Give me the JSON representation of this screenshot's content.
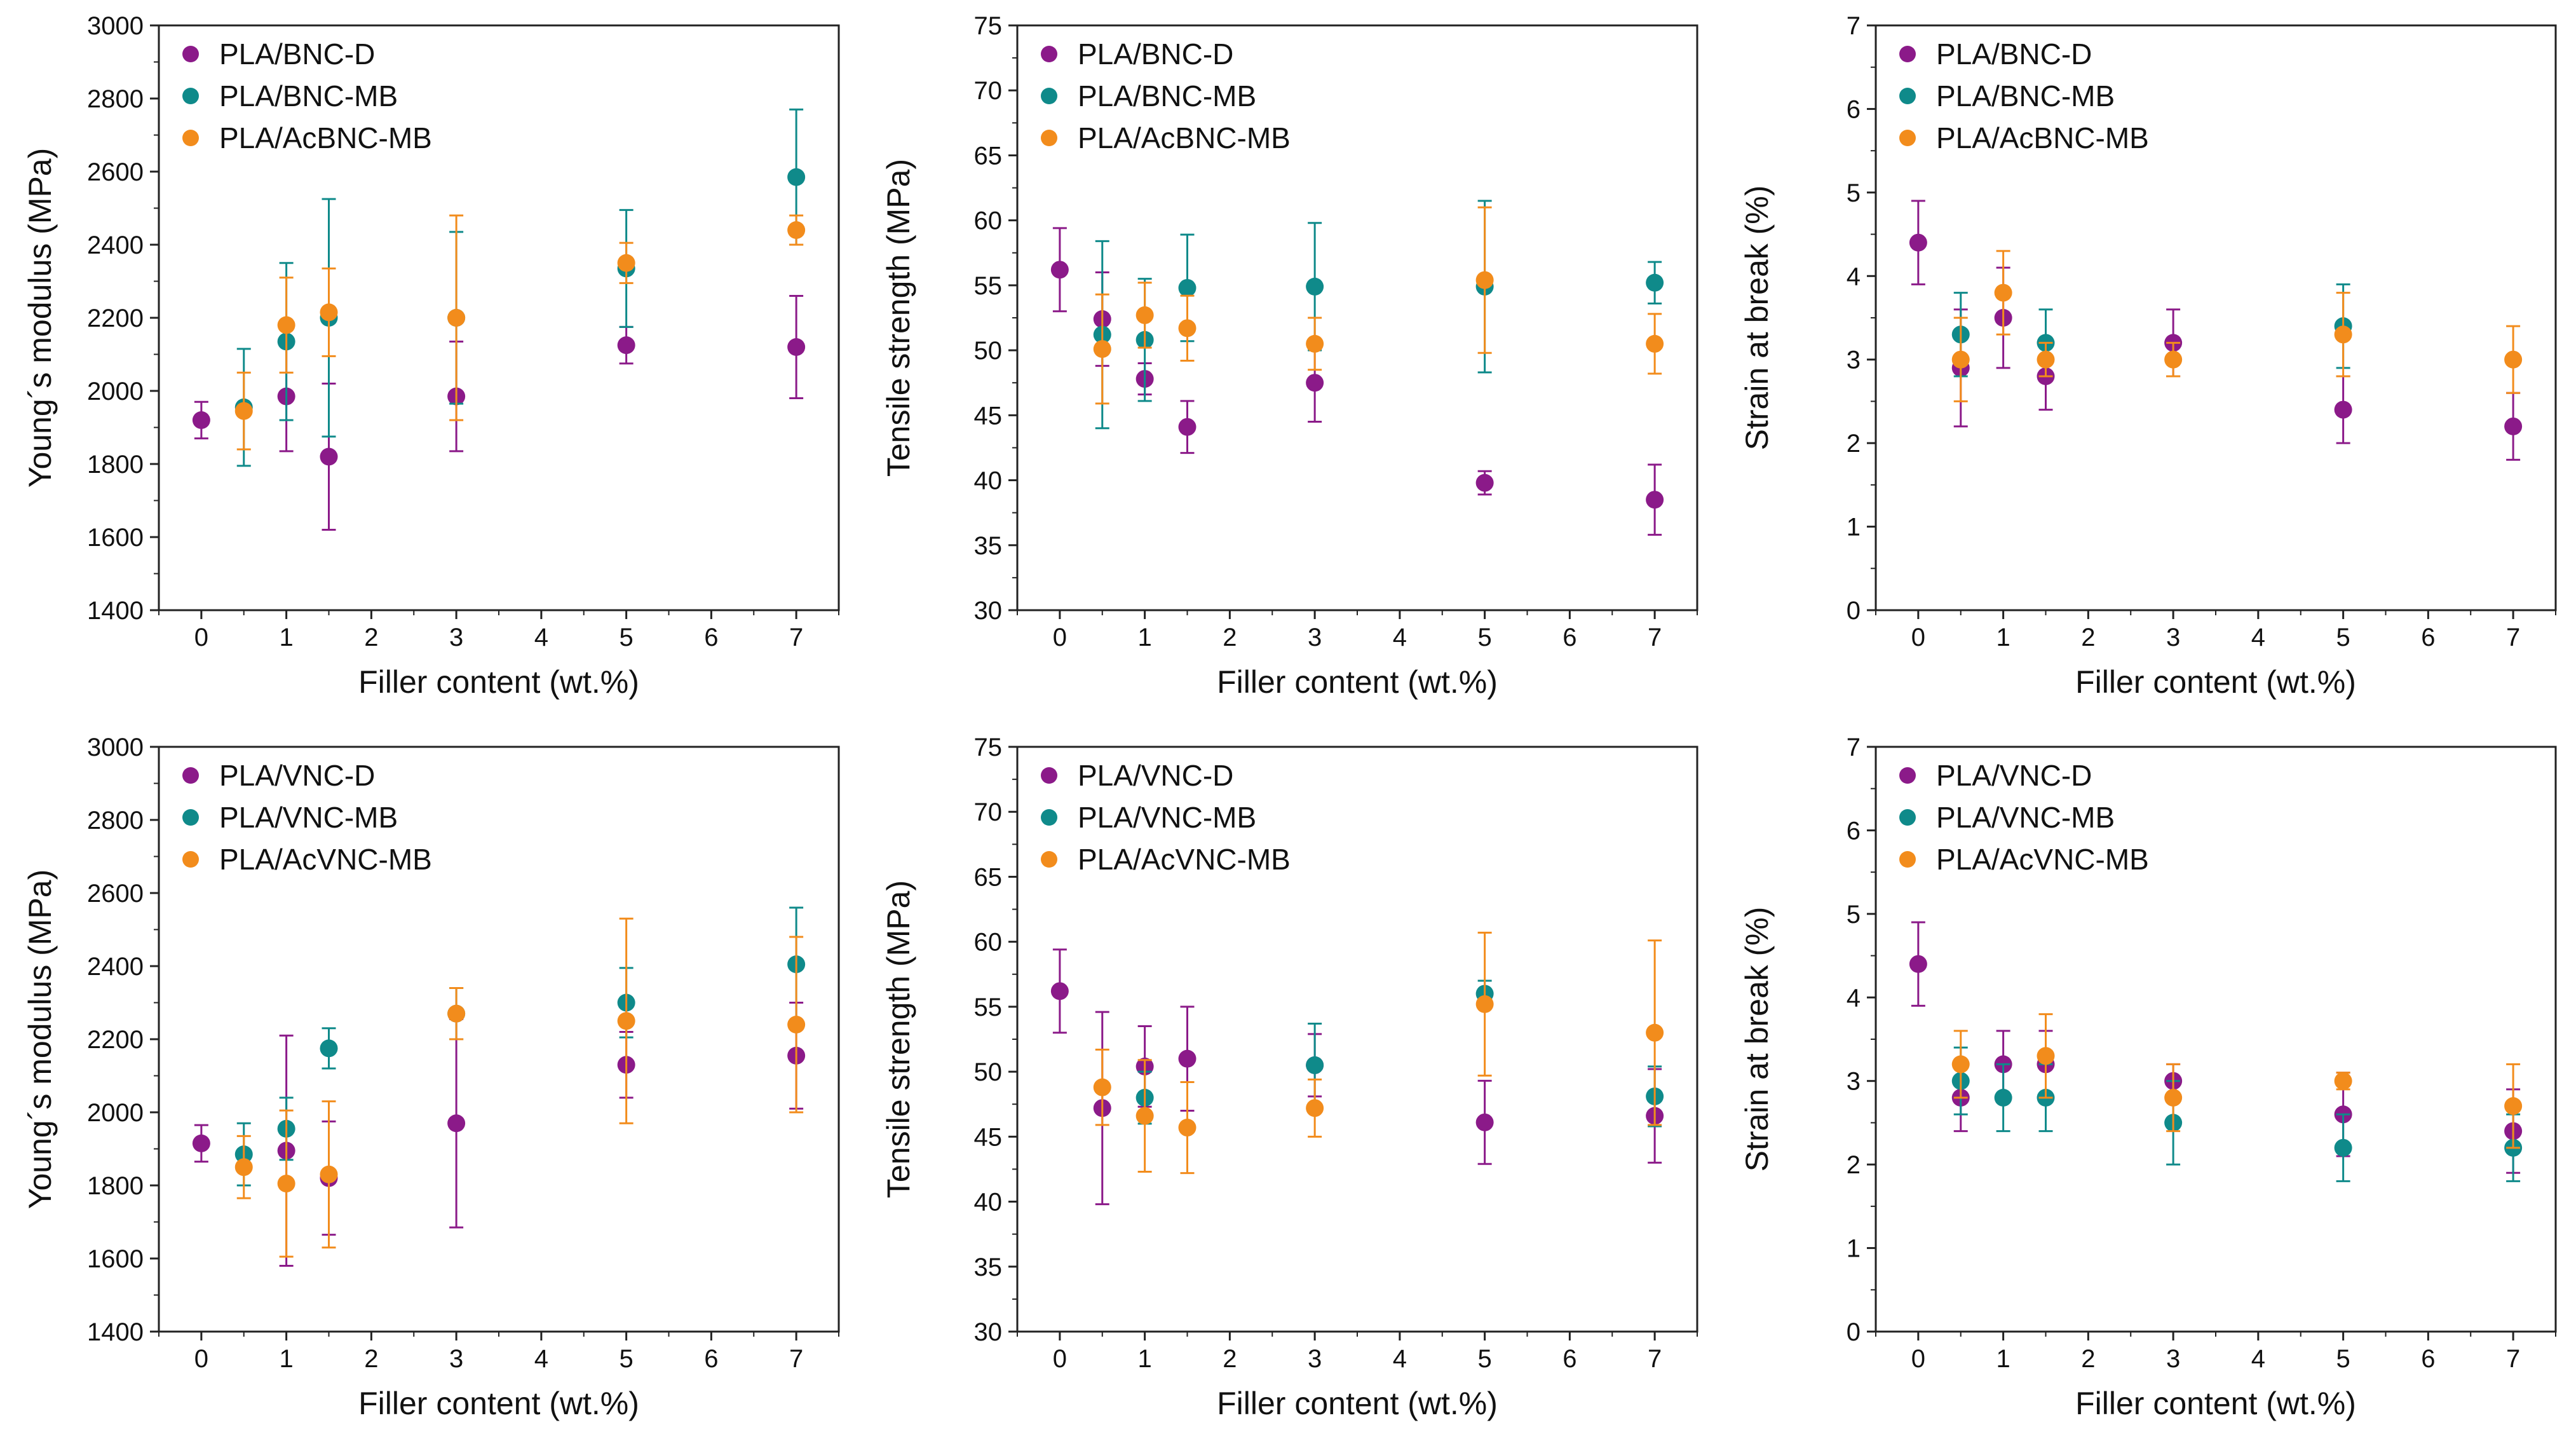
{
  "chart_data": [
    {
      "type": "scatter",
      "xlabel": "Filler content (wt.%)",
      "ylabel": "Young´s modulus (MPa)",
      "xlim": [
        -0.5,
        7.5
      ],
      "ylim": [
        1400,
        3000
      ],
      "xticks": [
        0,
        1,
        2,
        3,
        4,
        5,
        6,
        7
      ],
      "yticks": [
        1400,
        1600,
        1800,
        2000,
        2200,
        2400,
        2600,
        2800,
        3000
      ],
      "legend": "top-left",
      "series": [
        {
          "name": "PLA/BNC-D",
          "color": "#8b1a89",
          "x": [
            0,
            1,
            1.5,
            3,
            5,
            7
          ],
          "y": [
            1920,
            1985,
            1820,
            1985,
            2125,
            2120
          ],
          "err": [
            50,
            150,
            200,
            150,
            50,
            140
          ]
        },
        {
          "name": "PLA/BNC-MB",
          "color": "#0f8a8a",
          "x": [
            0.5,
            1,
            1.5,
            3,
            5,
            7
          ],
          "y": [
            1955,
            2135,
            2200,
            2200,
            2335,
            2585
          ],
          "err": [
            160,
            215,
            325,
            235,
            160,
            185
          ]
        },
        {
          "name": "PLA/AcBNC-MB",
          "color": "#f28c1c",
          "x": [
            0.5,
            1,
            1.5,
            3,
            5,
            7
          ],
          "y": [
            1945,
            2180,
            2215,
            2200,
            2350,
            2440
          ],
          "err": [
            105,
            130,
            120,
            280,
            55,
            40
          ]
        }
      ]
    },
    {
      "type": "scatter",
      "xlabel": "Filler content (wt.%)",
      "ylabel": "Tensile strength (MPa)",
      "xlim": [
        -0.5,
        7.5
      ],
      "ylim": [
        30,
        75
      ],
      "xticks": [
        0,
        1,
        2,
        3,
        4,
        5,
        6,
        7
      ],
      "yticks": [
        30,
        35,
        40,
        45,
        50,
        55,
        60,
        65,
        70,
        75
      ],
      "legend": "top-left",
      "series": [
        {
          "name": "PLA/BNC-D",
          "color": "#8b1a89",
          "x": [
            0,
            0.5,
            1,
            1.5,
            3,
            5,
            7
          ],
          "y": [
            56.2,
            52.4,
            47.8,
            44.1,
            47.5,
            39.8,
            38.5
          ],
          "err": [
            3.2,
            3.6,
            1.2,
            2.0,
            3.0,
            0.9,
            2.7
          ]
        },
        {
          "name": "PLA/BNC-MB",
          "color": "#0f8a8a",
          "x": [
            0.5,
            1,
            1.5,
            3,
            5,
            7
          ],
          "y": [
            51.2,
            50.8,
            54.8,
            54.9,
            54.9,
            55.2
          ],
          "err": [
            7.2,
            4.7,
            4.1,
            4.9,
            6.6,
            1.6
          ]
        },
        {
          "name": "PLA/AcBNC-MB",
          "color": "#f28c1c",
          "x": [
            0.5,
            1,
            1.5,
            3,
            5,
            7
          ],
          "y": [
            50.1,
            52.7,
            51.7,
            50.5,
            55.4,
            50.5
          ],
          "err": [
            4.2,
            2.5,
            2.5,
            2.0,
            5.6,
            2.3
          ]
        }
      ]
    },
    {
      "type": "scatter",
      "xlabel": "Filler content (wt.%)",
      "ylabel": "Strain at break (%)",
      "xlim": [
        -0.5,
        7.5
      ],
      "ylim": [
        0,
        7
      ],
      "xticks": [
        0,
        1,
        2,
        3,
        4,
        5,
        6,
        7
      ],
      "yticks": [
        0,
        1,
        2,
        3,
        4,
        5,
        6,
        7
      ],
      "legend": "top-left",
      "series": [
        {
          "name": "PLA/BNC-D",
          "color": "#8b1a89",
          "x": [
            0,
            0.5,
            1,
            1.5,
            3,
            5,
            7
          ],
          "y": [
            4.4,
            2.9,
            3.5,
            2.8,
            3.2,
            2.4,
            2.2
          ],
          "err": [
            0.5,
            0.7,
            0.6,
            0.4,
            0.4,
            0.4,
            0.4
          ]
        },
        {
          "name": "PLA/BNC-MB",
          "color": "#0f8a8a",
          "x": [
            0.5,
            1.5,
            5
          ],
          "y": [
            3.3,
            3.2,
            3.4
          ],
          "err": [
            0.5,
            0.4,
            0.5
          ]
        },
        {
          "name": "PLA/AcBNC-MB",
          "color": "#f28c1c",
          "x": [
            0.5,
            1,
            1.5,
            3,
            5,
            7
          ],
          "y": [
            3.0,
            3.8,
            3.0,
            3.0,
            3.3,
            3.0
          ],
          "err": [
            0.5,
            0.5,
            0.2,
            0.2,
            0.5,
            0.4
          ]
        }
      ]
    },
    {
      "type": "scatter",
      "xlabel": "Filler content (wt.%)",
      "ylabel": "Young´s modulus (MPa)",
      "xlim": [
        -0.5,
        7.5
      ],
      "ylim": [
        1400,
        3000
      ],
      "xticks": [
        0,
        1,
        2,
        3,
        4,
        5,
        6,
        7
      ],
      "yticks": [
        1400,
        1600,
        1800,
        2000,
        2200,
        2400,
        2600,
        2800,
        3000
      ],
      "legend": "top-left",
      "series": [
        {
          "name": "PLA/VNC-D",
          "color": "#8b1a89",
          "x": [
            0,
            1,
            1.5,
            3,
            5,
            7
          ],
          "y": [
            1915,
            1895,
            1820,
            1970,
            2130,
            2155
          ],
          "err": [
            50,
            315,
            155,
            285,
            90,
            145
          ]
        },
        {
          "name": "PLA/VNC-MB",
          "color": "#0f8a8a",
          "x": [
            0.5,
            1,
            1.5,
            3,
            5,
            7
          ],
          "y": [
            1885,
            1955,
            2175,
            2270,
            2300,
            2405
          ],
          "err": [
            85,
            85,
            55,
            70,
            95,
            155
          ]
        },
        {
          "name": "PLA/AcVNC-MB",
          "color": "#f28c1c",
          "x": [
            0.5,
            1,
            1.5,
            3,
            5,
            7
          ],
          "y": [
            1850,
            1805,
            1830,
            2270,
            2250,
            2240
          ],
          "err": [
            85,
            200,
            200,
            70,
            280,
            240
          ]
        }
      ]
    },
    {
      "type": "scatter",
      "xlabel": "Filler content (wt.%)",
      "ylabel": "Tensile strength (MPa)",
      "xlim": [
        -0.5,
        7.5
      ],
      "ylim": [
        30,
        75
      ],
      "xticks": [
        0,
        1,
        2,
        3,
        4,
        5,
        6,
        7
      ],
      "yticks": [
        30,
        35,
        40,
        45,
        50,
        55,
        60,
        65,
        70,
        75
      ],
      "legend": "top-left",
      "series": [
        {
          "name": "PLA/VNC-D",
          "color": "#8b1a89",
          "x": [
            0,
            0.5,
            1,
            1.5,
            3,
            5,
            7
          ],
          "y": [
            56.2,
            47.2,
            50.4,
            51.0,
            50.5,
            46.1,
            46.6
          ],
          "err": [
            3.2,
            7.4,
            3.1,
            4.0,
            2.4,
            3.2,
            3.6
          ]
        },
        {
          "name": "PLA/VNC-MB",
          "color": "#0f8a8a",
          "x": [
            1,
            3,
            5,
            7
          ],
          "y": [
            48.0,
            50.5,
            56.0,
            48.1
          ],
          "err": [
            2.0,
            3.2,
            1.0,
            2.3
          ]
        },
        {
          "name": "PLA/AcVNC-MB",
          "color": "#f28c1c",
          "x": [
            0.5,
            1,
            1.5,
            3,
            5,
            7
          ],
          "y": [
            48.8,
            46.6,
            45.7,
            47.2,
            55.2,
            53.0
          ],
          "err": [
            2.9,
            4.3,
            3.5,
            2.2,
            5.5,
            7.1
          ]
        }
      ]
    },
    {
      "type": "scatter",
      "xlabel": "Filler content (wt.%)",
      "ylabel": "Strain at break (%)",
      "xlim": [
        -0.5,
        7.5
      ],
      "ylim": [
        0,
        7
      ],
      "xticks": [
        0,
        1,
        2,
        3,
        4,
        5,
        6,
        7
      ],
      "yticks": [
        0,
        1,
        2,
        3,
        4,
        5,
        6,
        7
      ],
      "legend": "top-left",
      "series": [
        {
          "name": "PLA/VNC-D",
          "color": "#8b1a89",
          "x": [
            0,
            0.5,
            1,
            1.5,
            3,
            5,
            7
          ],
          "y": [
            4.4,
            2.8,
            3.2,
            3.2,
            3.0,
            2.6,
            2.4
          ],
          "err": [
            0.5,
            0.4,
            0.4,
            0.4,
            0.2,
            0.5,
            0.5
          ]
        },
        {
          "name": "PLA/VNC-MB",
          "color": "#0f8a8a",
          "x": [
            0.5,
            1,
            1.5,
            3,
            5,
            7
          ],
          "y": [
            3.0,
            2.8,
            2.8,
            2.5,
            2.2,
            2.2
          ],
          "err": [
            0.4,
            0.4,
            0.4,
            0.5,
            0.4,
            0.4
          ]
        },
        {
          "name": "PLA/AcVNC-MB",
          "color": "#f28c1c",
          "x": [
            0.5,
            1.5,
            3,
            5,
            7
          ],
          "y": [
            3.2,
            3.3,
            2.8,
            3.0,
            2.7
          ],
          "err": [
            0.4,
            0.5,
            0.4,
            0.1,
            0.5
          ]
        }
      ]
    }
  ]
}
